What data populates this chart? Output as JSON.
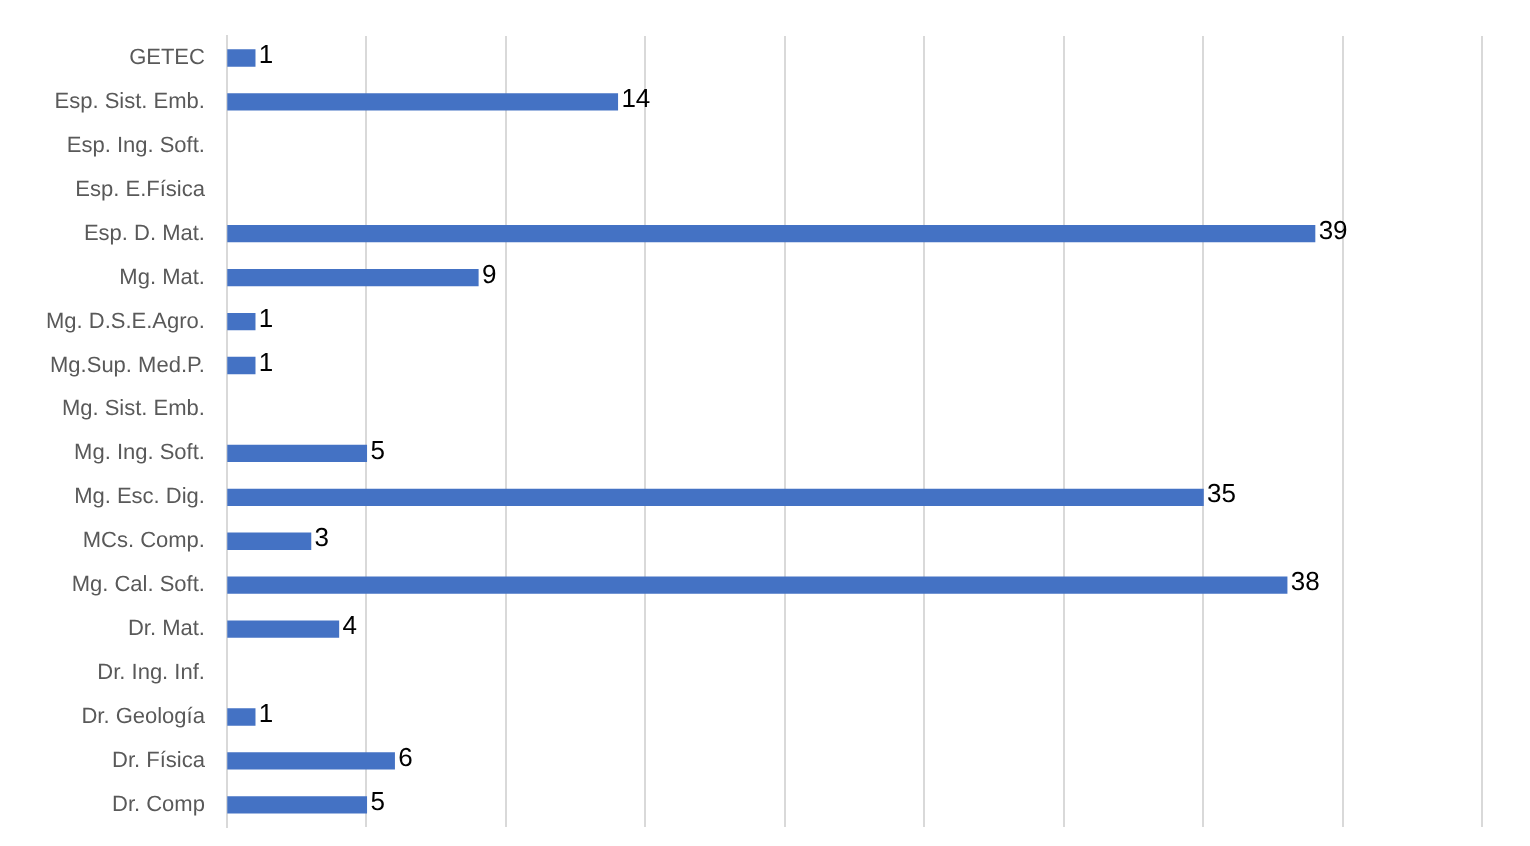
{
  "chart_data": {
    "type": "bar",
    "orientation": "horizontal",
    "categories": [
      "GETEC",
      "Esp. Sist. Emb.",
      "Esp. Ing. Soft.",
      "Esp. E.Física",
      "Esp. D. Mat.",
      "Mg. Mat.",
      "Mg. D.S.E.Agro.",
      "Mg.Sup. Med.P.",
      "Mg. Sist. Emb.",
      "Mg. Ing. Soft.",
      "Mg. Esc. Dig.",
      "MCs. Comp.",
      "Mg. Cal. Soft.",
      "Dr. Mat.",
      "Dr. Ing. Inf.",
      "Dr. Geología",
      "Dr. Física",
      "Dr. Comp"
    ],
    "values": [
      1,
      14,
      null,
      null,
      39,
      9,
      1,
      1,
      null,
      5,
      35,
      3,
      38,
      4,
      null,
      1,
      6,
      5
    ],
    "color": "#4472c4",
    "data_labels": true,
    "grid": "x",
    "tick_labels": "y",
    "xlim": [
      0,
      45
    ],
    "xticks": [
      {
        "value": 0,
        "label": null
      },
      {
        "value": 5,
        "label": null
      },
      {
        "value": 10,
        "label": null
      },
      {
        "value": 15,
        "label": null
      },
      {
        "value": 20,
        "label": null
      },
      {
        "value": 25,
        "label": null
      },
      {
        "value": 30,
        "label": null
      },
      {
        "value": 35,
        "label": null
      },
      {
        "value": 40,
        "label": null
      },
      {
        "value": 45,
        "label": null
      }
    ]
  }
}
